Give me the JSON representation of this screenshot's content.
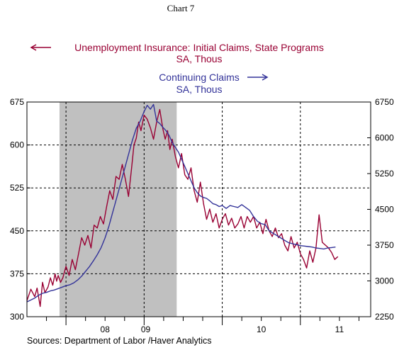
{
  "chart_data": {
    "type": "line",
    "title": "Chart 7",
    "left_series_label": [
      "Unemployment Insurance: Initial Claims, State Programs",
      "SA, Thous"
    ],
    "right_series_label": [
      "Continuing Claims",
      "SA, Thous"
    ],
    "source": "Sources:  Department of Labor /Haver Analytics",
    "x_labels": [
      "08",
      "09",
      "10",
      "11"
    ],
    "x_range": [
      2007.5,
      2011.9
    ],
    "y_left": {
      "ticks": [
        "675",
        "600",
        "525",
        "450",
        "375",
        "300"
      ],
      "min": 300,
      "max": 675
    },
    "y_right": {
      "ticks": [
        "6750",
        "6000",
        "5250",
        "4500",
        "3750",
        "3000",
        "2250"
      ],
      "min": 2250,
      "max": 6750
    },
    "recession_shade": [
      2007.917,
      2009.417
    ],
    "colors": {
      "initial_claims": "#990033",
      "continuing_claims": "#333399",
      "recession": "#c0c0c0"
    },
    "series": [
      {
        "name": "Unemployment Insurance: Initial Claims, State Programs",
        "axis": "left",
        "x": [
          2007.5,
          2007.55,
          2007.6,
          2007.63,
          2007.67,
          2007.7,
          2007.73,
          2007.77,
          2007.8,
          2007.83,
          2007.86,
          2007.88,
          2007.9,
          2007.93,
          2007.96,
          2008.0,
          2008.04,
          2008.08,
          2008.12,
          2008.16,
          2008.2,
          2008.24,
          2008.28,
          2008.32,
          2008.36,
          2008.4,
          2008.44,
          2008.48,
          2008.52,
          2008.56,
          2008.6,
          2008.64,
          2008.68,
          2008.72,
          2008.76,
          2008.8,
          2008.84,
          2008.87,
          2008.9,
          2008.93,
          2008.96,
          2009.0,
          2009.04,
          2009.08,
          2009.12,
          2009.16,
          2009.2,
          2009.24,
          2009.27,
          2009.3,
          2009.33,
          2009.36,
          2009.4,
          2009.44,
          2009.48,
          2009.52,
          2009.56,
          2009.6,
          2009.64,
          2009.68,
          2009.72,
          2009.76,
          2009.8,
          2009.84,
          2009.88,
          2009.92,
          2009.96,
          2010.0,
          2010.04,
          2010.08,
          2010.12,
          2010.16,
          2010.2,
          2010.24,
          2010.28,
          2010.32,
          2010.36,
          2010.4,
          2010.44,
          2010.48,
          2010.52,
          2010.56,
          2010.6,
          2010.64,
          2010.68,
          2010.72,
          2010.76,
          2010.8,
          2010.84,
          2010.88,
          2010.92,
          2010.96,
          2011.0,
          2011.04,
          2011.08,
          2011.12,
          2011.16,
          2011.2,
          2011.24,
          2011.28,
          2011.32,
          2011.36,
          2011.4,
          2011.44,
          2011.48
        ],
        "y": [
          328,
          348,
          335,
          350,
          318,
          360,
          342,
          352,
          368,
          355,
          375,
          362,
          372,
          360,
          368,
          388,
          372,
          400,
          382,
          410,
          438,
          425,
          442,
          420,
          460,
          455,
          475,
          462,
          492,
          520,
          505,
          545,
          540,
          566,
          540,
          510,
          560,
          600,
          612,
          640,
          625,
          652,
          645,
          630,
          610,
          640,
          662,
          628,
          610,
          625,
          592,
          610,
          580,
          560,
          585,
          548,
          540,
          560,
          520,
          500,
          535,
          498,
          470,
          488,
          465,
          480,
          455,
          470,
          480,
          460,
          472,
          455,
          462,
          475,
          455,
          475,
          465,
          475,
          455,
          465,
          445,
          470,
          450,
          440,
          455,
          438,
          445,
          425,
          415,
          440,
          420,
          430,
          410,
          400,
          385,
          415,
          395,
          420,
          478,
          430,
          425,
          420,
          412,
          400,
          405
        ]
      },
      {
        "name": "Continuing Claims",
        "axis": "right",
        "x": [
          2007.5,
          2007.55,
          2007.6,
          2007.65,
          2007.7,
          2007.75,
          2007.8,
          2007.85,
          2007.9,
          2007.95,
          2008.0,
          2008.05,
          2008.1,
          2008.15,
          2008.2,
          2008.25,
          2008.3,
          2008.35,
          2008.4,
          2008.45,
          2008.5,
          2008.55,
          2008.6,
          2008.65,
          2008.7,
          2008.75,
          2008.8,
          2008.85,
          2008.9,
          2008.95,
          2009.0,
          2009.04,
          2009.08,
          2009.12,
          2009.16,
          2009.2,
          2009.24,
          2009.28,
          2009.32,
          2009.36,
          2009.4,
          2009.44,
          2009.48,
          2009.52,
          2009.56,
          2009.6,
          2009.64,
          2009.68,
          2009.72,
          2009.76,
          2009.8,
          2009.84,
          2009.88,
          2009.92,
          2009.96,
          2010.0,
          2010.05,
          2010.1,
          2010.15,
          2010.2,
          2010.25,
          2010.3,
          2010.35,
          2010.4,
          2010.45,
          2010.5,
          2010.55,
          2010.6,
          2010.65,
          2010.7,
          2010.75,
          2010.8,
          2010.85,
          2010.9,
          2010.95,
          2011.0,
          2011.05,
          2011.1,
          2011.15,
          2011.2,
          2011.25,
          2011.3,
          2011.35,
          2011.4,
          2011.45
        ],
        "y": [
          2560,
          2600,
          2640,
          2700,
          2740,
          2760,
          2790,
          2810,
          2840,
          2870,
          2900,
          2920,
          2960,
          3020,
          3100,
          3200,
          3300,
          3420,
          3550,
          3700,
          3900,
          4150,
          4450,
          4750,
          5050,
          5350,
          5650,
          5950,
          6200,
          6350,
          6550,
          6680,
          6600,
          6700,
          6350,
          6300,
          6220,
          6150,
          6050,
          5900,
          5800,
          5700,
          5550,
          5400,
          5250,
          5100,
          4950,
          4850,
          4780,
          4750,
          4730,
          4680,
          4620,
          4600,
          4560,
          4580,
          4520,
          4580,
          4560,
          4540,
          4600,
          4540,
          4480,
          4350,
          4250,
          4200,
          4180,
          4050,
          4000,
          3950,
          3900,
          3850,
          3800,
          3780,
          3760,
          3740,
          3730,
          3720,
          3710,
          3690,
          3680,
          3670,
          3690,
          3700,
          3710
        ]
      }
    ],
    "grid": {
      "vertical_dashed": true,
      "horizontal_dashed": true
    }
  }
}
